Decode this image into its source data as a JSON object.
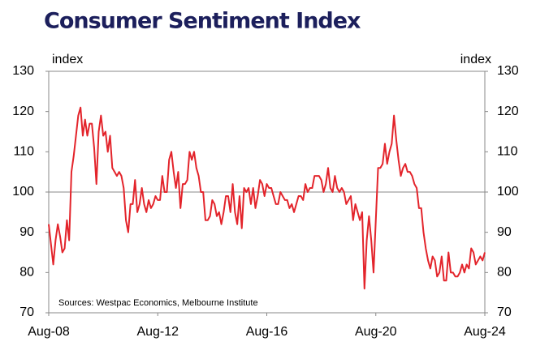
{
  "chart_data": {
    "type": "line",
    "title": "Consumer Sentiment Index",
    "y_label": "index",
    "y2_label": "index",
    "annotation": "Sources: Westpac Economics, Melbourne Institute",
    "categories": [
      "Aug-08",
      null,
      null,
      null,
      null,
      null,
      null,
      null,
      null,
      null,
      null,
      null,
      null,
      null,
      null,
      null,
      null,
      null,
      null,
      null,
      null,
      null,
      null,
      null,
      null,
      null,
      null,
      null,
      null,
      null,
      null,
      null,
      null,
      null,
      null,
      null,
      null,
      null,
      null,
      null,
      null,
      null,
      null,
      null,
      null,
      null,
      null,
      null,
      "Aug-12",
      null,
      null,
      null,
      null,
      null,
      null,
      null,
      null,
      null,
      null,
      null,
      null,
      null,
      null,
      null,
      null,
      null,
      null,
      null,
      null,
      null,
      null,
      null,
      null,
      null,
      null,
      null,
      null,
      null,
      null,
      null,
      null,
      null,
      null,
      null,
      null,
      null,
      null,
      null,
      null,
      null,
      null,
      null,
      null,
      null,
      null,
      null,
      "Aug-16",
      null,
      null,
      null,
      null,
      null,
      null,
      null,
      null,
      null,
      null,
      null,
      null,
      null,
      null,
      null,
      null,
      null,
      null,
      null,
      null,
      null,
      null,
      null,
      null,
      null,
      null,
      null,
      null,
      null,
      null,
      null,
      null,
      null,
      null,
      null,
      null,
      null,
      null,
      null,
      null,
      null,
      null,
      null,
      null,
      null,
      null,
      null,
      "Aug-20",
      null,
      null,
      null,
      null,
      null,
      null,
      null,
      null,
      null,
      null,
      null,
      null,
      null,
      null,
      null,
      null,
      null,
      null,
      null,
      null,
      null,
      null,
      null,
      null,
      null,
      null,
      null,
      null,
      null,
      null,
      null,
      null,
      null,
      null,
      null,
      null,
      null,
      null,
      null,
      null,
      null,
      null,
      null,
      null,
      null,
      null,
      null,
      "Aug-24"
    ],
    "series": [
      {
        "name": "Consumer Sentiment Index",
        "color": "#e3242b",
        "values": [
          92,
          87,
          82,
          88,
          92,
          89,
          85,
          86,
          93,
          88,
          105,
          109,
          114,
          119,
          121,
          114,
          118,
          114,
          117,
          117,
          111,
          102,
          115,
          119,
          114,
          115,
          110,
          114,
          106,
          105,
          104,
          105,
          104,
          101,
          93,
          90,
          97,
          97,
          103,
          95,
          97,
          101,
          97,
          95,
          98,
          96,
          97,
          99,
          98,
          98,
          104,
          100,
          100,
          108,
          110,
          105,
          101,
          105,
          96,
          102,
          102,
          103,
          110,
          108,
          110,
          106,
          104,
          100,
          100,
          93,
          93,
          94,
          98,
          97,
          94,
          95,
          92,
          95,
          99,
          99,
          95,
          102,
          95,
          92,
          99,
          91,
          101,
          100,
          101,
          97,
          101,
          96,
          99,
          103,
          102,
          99,
          102,
          101,
          101,
          99,
          97,
          97,
          100,
          99,
          98,
          98,
          96,
          97,
          95,
          97,
          99,
          99,
          98,
          102,
          100,
          101,
          101,
          104,
          104,
          104,
          103,
          100,
          102,
          106,
          101,
          100,
          104,
          101,
          100,
          101,
          100,
          97,
          98,
          99,
          93,
          97,
          95,
          93,
          95,
          76,
          88,
          94,
          88,
          80,
          93,
          106,
          106,
          107,
          112,
          107,
          110,
          112,
          119,
          113,
          108,
          104,
          106,
          107,
          105,
          105,
          104,
          102,
          101,
          96,
          96,
          90,
          86,
          83,
          81,
          84,
          83,
          79,
          80,
          84,
          78,
          78,
          85,
          80,
          80,
          79,
          79,
          80,
          82,
          80,
          82,
          81,
          86,
          85,
          82,
          83,
          84,
          83,
          85
        ]
      }
    ],
    "ylim": [
      70,
      130
    ],
    "yticks": [
      70,
      80,
      90,
      100,
      110,
      120,
      130
    ],
    "y2lim": [
      70,
      130
    ],
    "y2ticks": [
      70,
      80,
      90,
      100,
      110,
      120,
      130
    ],
    "reference_line": 100,
    "grid": false
  }
}
